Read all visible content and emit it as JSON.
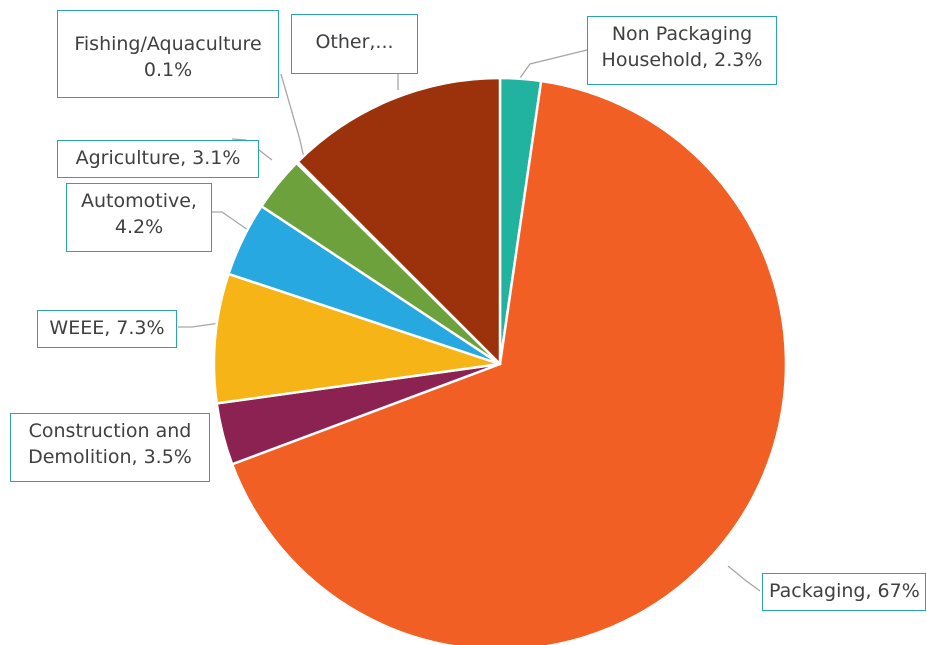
{
  "chart_data": {
    "type": "pie",
    "title": "",
    "slices": [
      {
        "label": "Non Packaging Household",
        "value": 2.3,
        "color": "#21b2a0"
      },
      {
        "label": "Packaging",
        "value": 67,
        "color": "#f15f24"
      },
      {
        "label": "Construction and Demolition",
        "value": 3.5,
        "color": "#8b2252"
      },
      {
        "label": "WEEE",
        "value": 7.3,
        "color": "#f6b416"
      },
      {
        "label": "Automotive",
        "value": 4.2,
        "color": "#28a8e0"
      },
      {
        "label": "Agriculture",
        "value": 3.1,
        "color": "#6ca13b"
      },
      {
        "label": "Fishing/Aquaculture",
        "value": 0.1,
        "color": "#d9d9d9"
      },
      {
        "label": "Other",
        "value": 12.5,
        "color": "#9b320c"
      }
    ],
    "data_labels": {
      "nonpack_line1": "Non Packaging",
      "nonpack_line2": "Household, 2.3%",
      "packaging": "Packaging, 67%",
      "constr_line1": "Construction and",
      "constr_line2": "Demolition, 3.5%",
      "weee": "WEEE, 7.3%",
      "auto_line1": "Automotive,",
      "auto_line2": "4.2%",
      "agri": "Agriculture, 3.1%",
      "fishing_line1": "Fishing/Aquaculture",
      "fishing_line2": "0.1%",
      "other": "Other,..."
    },
    "legend": "none",
    "label_border_color": "#2aa5ad",
    "leader_line_color": "#a6a6a6"
  }
}
